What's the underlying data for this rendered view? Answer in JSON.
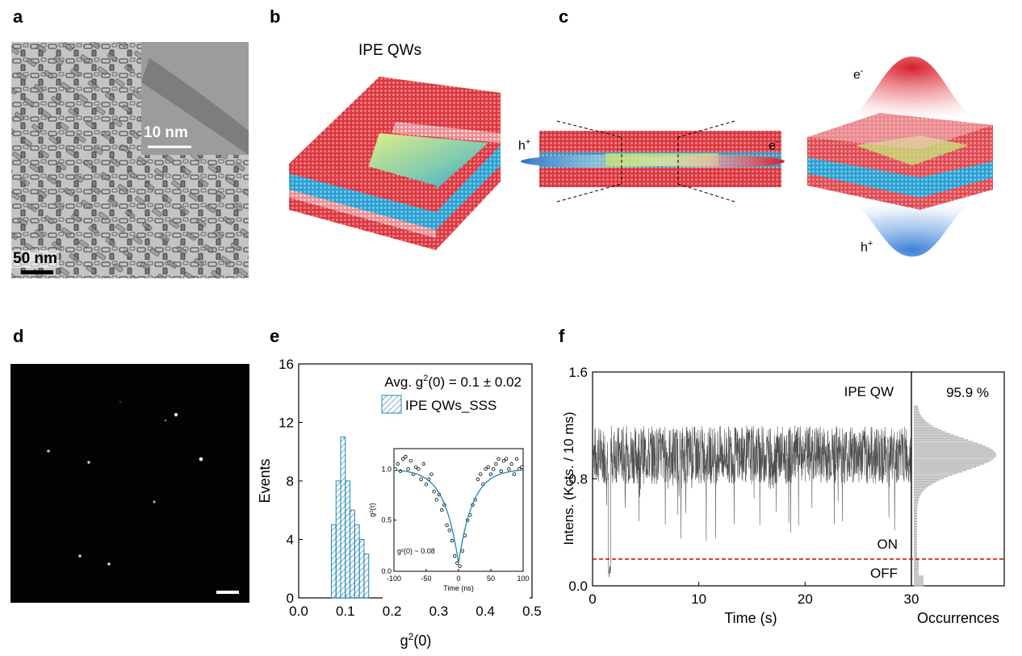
{
  "panels": {
    "a": {
      "letter": "a",
      "scale_inset": "10 nm",
      "scale_main": "50 nm"
    },
    "b": {
      "letter": "b",
      "title": "IPE QWs"
    },
    "c": {
      "letter": "c",
      "h_label": "h",
      "h_sup": "+",
      "e_label": "e",
      "e_sup": "-"
    },
    "d": {
      "letter": "d"
    },
    "e": {
      "letter": "e",
      "annotation_prefix": "Avg. g",
      "annotation_sup": "2",
      "annotation_suffix": "(0) = 0.1 ± 0.02",
      "legend": "IPE QWs_SSS",
      "xlabel_main": "g",
      "xlabel_sup": "2",
      "xlabel_suffix": "(0)",
      "ylabel": "Events",
      "inset_xlabel": "Time (ns)",
      "inset_ylabel": "g²(τ)",
      "inset_note": "g²(0) ~ 0.08"
    },
    "f": {
      "letter": "f",
      "ylabel": "Intens. (Kcts. / 10 ms)",
      "xlabel": "Time (s)",
      "label_qw": "IPE QW",
      "label_on": "ON",
      "label_off": "OFF",
      "hist_percent": "95.9 %",
      "hist_xlabel": "Occurrences",
      "threshold_color": "#cc0000"
    }
  },
  "colors": {
    "qw_red": "#d9363e",
    "qw_blue": "#2a9fd0",
    "qw_green": "#c8e07a",
    "hist_blue": "#1f84b8",
    "trace_gray": "#505050"
  },
  "chart_data": [
    {
      "type": "bar",
      "title": "Avg. g2(0) = 0.1 ± 0.02",
      "xlabel": "g2(0)",
      "ylabel": "Events",
      "xlim": [
        0,
        0.5
      ],
      "ylim": [
        0,
        16
      ],
      "xticks": [
        "0.0",
        "0.1",
        "0.2",
        "0.3",
        "0.4",
        "0.5"
      ],
      "yticks": [
        "0",
        "4",
        "8",
        "12",
        "16"
      ],
      "bin_width": 0.01,
      "series": [
        {
          "name": "IPE QWs_SSS",
          "bins": [
            0.07,
            0.08,
            0.09,
            0.1,
            0.11,
            0.12,
            0.13,
            0.14
          ],
          "values": [
            5,
            8,
            11,
            8,
            6,
            5,
            4,
            3
          ]
        }
      ]
    },
    {
      "type": "scatter",
      "xlabel": "Time (ns)",
      "ylabel": "g²(τ)",
      "xlim": [
        -100,
        100
      ],
      "ylim": [
        0,
        1.2
      ],
      "xticks": [
        "-100",
        "-50",
        "0",
        "50",
        "100"
      ],
      "yticks": [
        "0.0",
        "0.5",
        "1.0"
      ],
      "points_x": [
        -98,
        -94,
        -90,
        -86,
        -82,
        -78,
        -74,
        -70,
        -66,
        -62,
        -58,
        -54,
        -50,
        -46,
        -42,
        -38,
        -34,
        -30,
        -26,
        -22,
        -18,
        -14,
        -10,
        -6,
        -2,
        2,
        6,
        10,
        14,
        18,
        22,
        26,
        30,
        34,
        38,
        42,
        46,
        50,
        54,
        58,
        62,
        66,
        70,
        74,
        78,
        82,
        86,
        90,
        94,
        98
      ],
      "points_y": [
        1.0,
        1.05,
        0.98,
        1.1,
        1.12,
        1.0,
        1.08,
        0.95,
        1.02,
        1.0,
        0.9,
        1.05,
        0.85,
        0.9,
        0.95,
        0.78,
        0.7,
        0.75,
        0.6,
        0.65,
        0.45,
        0.4,
        0.3,
        0.15,
        0.08,
        0.05,
        0.2,
        0.35,
        0.5,
        0.55,
        0.65,
        0.7,
        0.9,
        0.95,
        0.85,
        1.0,
        1.02,
        0.95,
        1.0,
        1.05,
        1.1,
        0.98,
        1.08,
        1.1,
        1.0,
        1.05,
        0.95,
        1.1,
        1.0,
        1.02
      ],
      "fit_tau_ns": 22,
      "fit_g0": 0.08
    },
    {
      "type": "line",
      "xlabel": "Time (s)",
      "ylabel": "Intens. (Kcts. / 10 ms)",
      "xlim": [
        0,
        30
      ],
      "ylim": [
        0,
        1.6
      ],
      "xticks": [
        "0",
        "10",
        "20",
        "30"
      ],
      "yticks": [
        "0.0",
        "0.8",
        "1.6"
      ],
      "threshold": 0.2,
      "series": [
        {
          "name": "IPE QW",
          "mean": 0.98,
          "spread": 0.22,
          "dip_at_s": [
            1.5,
            1.7
          ]
        }
      ]
    },
    {
      "type": "bar",
      "xlabel": "Occurrences",
      "orientation": "horizontal",
      "annotation": "95.9 %",
      "ylim": [
        0,
        1.6
      ],
      "peak_at": 0.98
    }
  ]
}
